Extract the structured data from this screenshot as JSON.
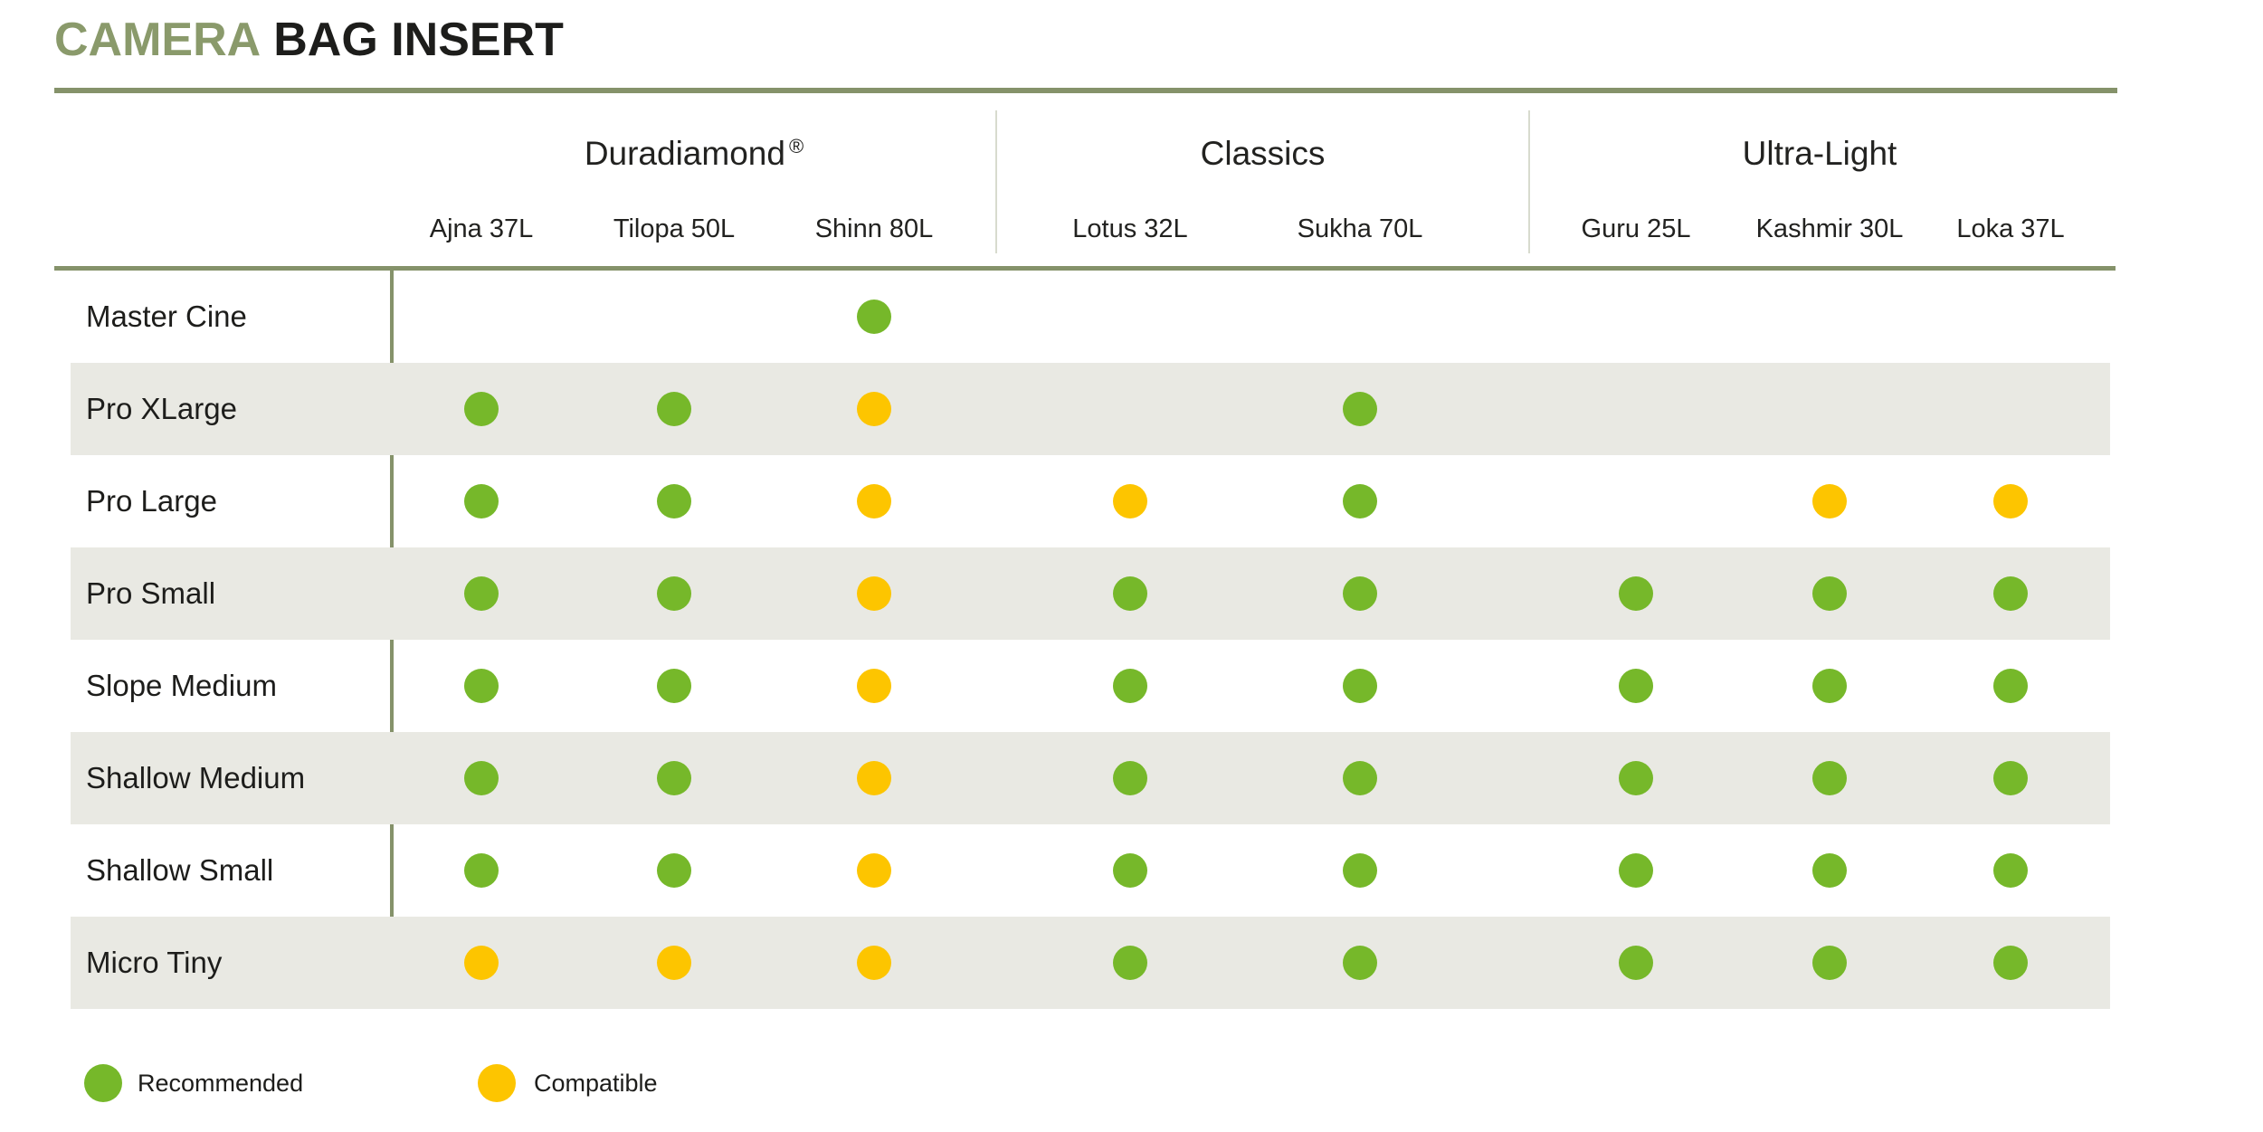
{
  "title": {
    "accent": "CAMERA",
    "rest": "BAG INSERT"
  },
  "groups": [
    {
      "label": "Duradiamond",
      "registered_mark": "®",
      "columns": [
        "Ajna 37L",
        "Tilopa 50L",
        "Shinn 80L"
      ]
    },
    {
      "label": "Classics",
      "registered_mark": "",
      "columns": [
        "Lotus 32L",
        "Sukha 70L"
      ]
    },
    {
      "label": "Ultra-Light",
      "registered_mark": "",
      "columns": [
        "Guru 25L",
        "Kashmir 30L",
        "Loka 37L"
      ]
    }
  ],
  "legend": [
    {
      "status": "recommended",
      "label": "Recommended"
    },
    {
      "status": "compatible",
      "label": "Compatible"
    }
  ],
  "colors": {
    "recommended_green": "#76b82a",
    "compatible_yellow": "#fdc500",
    "accent_olive": "#8a9a6b",
    "rule_olive": "#85926a",
    "row_stripe_gray": "#e9e9e3",
    "light_divider": "#d8dbce",
    "text_dark": "#1d1d1b"
  },
  "chart_data": {
    "type": "table",
    "title": "CAMERA BAG INSERT",
    "column_groups": [
      "Duradiamond ®",
      "Classics",
      "Ultra-Light"
    ],
    "columns": [
      "Ajna 37L",
      "Tilopa 50L",
      "Shinn 80L",
      "Lotus 32L",
      "Sukha 70L",
      "Guru 25L",
      "Kashmir 30L",
      "Loka 37L"
    ],
    "legend": {
      "recommended": "Recommended",
      "compatible": "Compatible"
    },
    "rows": [
      {
        "label": "Master Cine",
        "cells": [
          null,
          null,
          "recommended",
          null,
          null,
          null,
          null,
          null
        ]
      },
      {
        "label": "Pro XLarge",
        "cells": [
          "recommended",
          "recommended",
          "compatible",
          null,
          "recommended",
          null,
          null,
          null
        ]
      },
      {
        "label": "Pro Large",
        "cells": [
          "recommended",
          "recommended",
          "compatible",
          "compatible",
          "recommended",
          null,
          "compatible",
          "compatible"
        ]
      },
      {
        "label": "Pro Small",
        "cells": [
          "recommended",
          "recommended",
          "compatible",
          "recommended",
          "recommended",
          "recommended",
          "recommended",
          "recommended"
        ]
      },
      {
        "label": "Slope Medium",
        "cells": [
          "recommended",
          "recommended",
          "compatible",
          "recommended",
          "recommended",
          "recommended",
          "recommended",
          "recommended"
        ]
      },
      {
        "label": "Shallow Medium",
        "cells": [
          "recommended",
          "recommended",
          "compatible",
          "recommended",
          "recommended",
          "recommended",
          "recommended",
          "recommended"
        ]
      },
      {
        "label": "Shallow Small",
        "cells": [
          "recommended",
          "recommended",
          "compatible",
          "recommended",
          "recommended",
          "recommended",
          "recommended",
          "recommended"
        ]
      },
      {
        "label": "Micro Tiny",
        "cells": [
          "compatible",
          "compatible",
          "compatible",
          "recommended",
          "recommended",
          "recommended",
          "recommended",
          "recommended"
        ]
      }
    ]
  }
}
